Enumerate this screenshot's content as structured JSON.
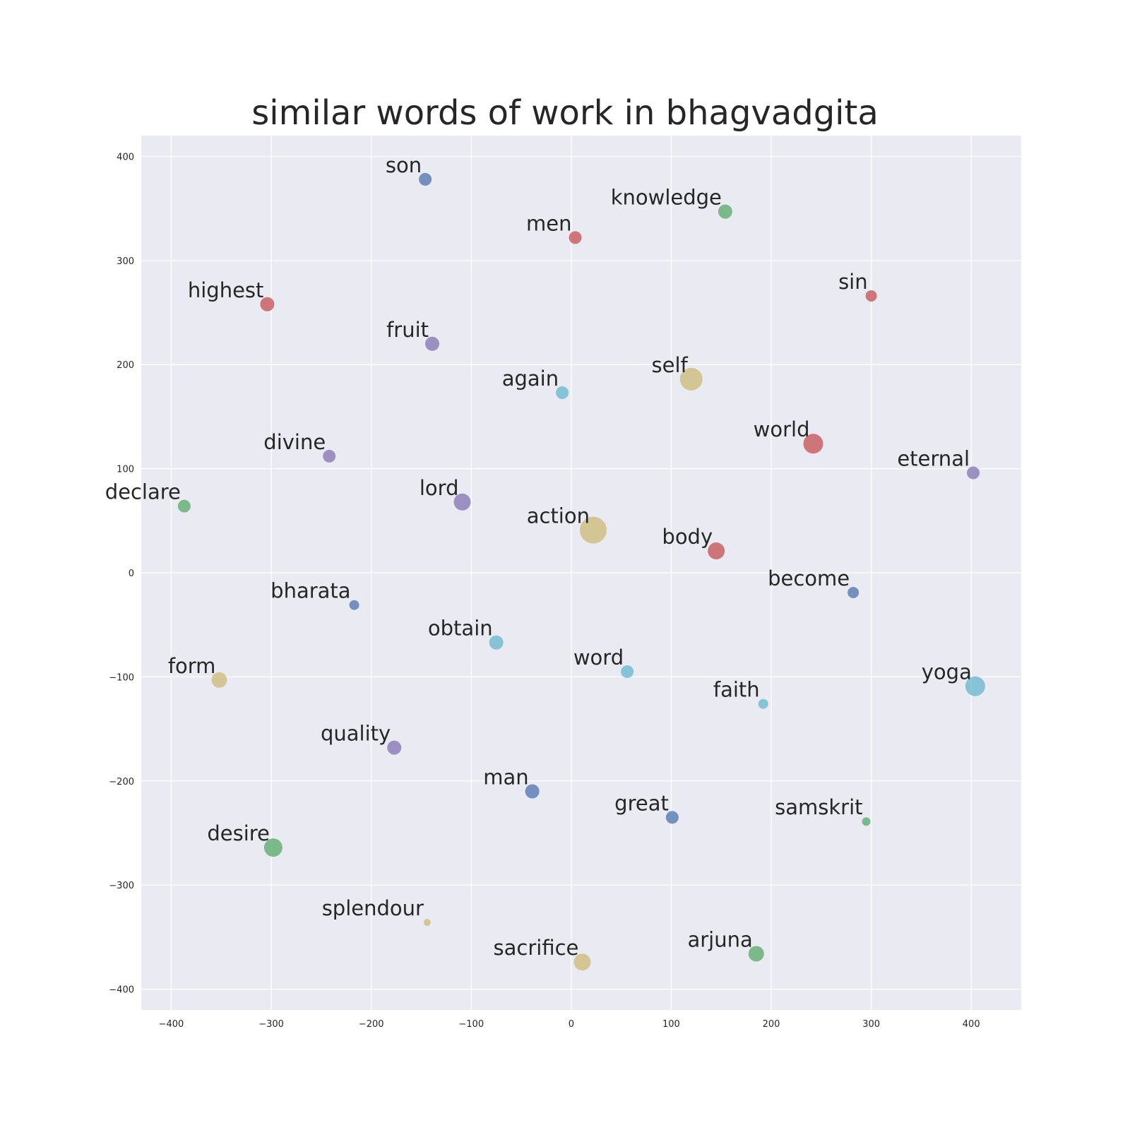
{
  "chart_data": {
    "type": "scatter",
    "title": "similar words of work in bhagvadgita",
    "xlabel": "",
    "ylabel": "",
    "xlim": [
      -430,
      450
    ],
    "ylim": [
      -420,
      420
    ],
    "xticks": [
      -400,
      -300,
      -200,
      -100,
      0,
      100,
      200,
      300,
      400
    ],
    "yticks": [
      -400,
      -300,
      -200,
      -100,
      0,
      100,
      200,
      300,
      400
    ],
    "grid": true,
    "background": "#eaeaf2",
    "colors": {
      "blue": "#4c72b0",
      "green": "#55a868",
      "red": "#c44e52",
      "purple": "#8172b2",
      "yellow": "#ccb974",
      "cyan": "#64b5cd"
    },
    "points": [
      {
        "label": "son",
        "x": -146,
        "y": 378,
        "size": 9,
        "color": "blue"
      },
      {
        "label": "knowledge",
        "x": 154,
        "y": 347,
        "size": 10,
        "color": "green"
      },
      {
        "label": "men",
        "x": 4,
        "y": 322,
        "size": 9,
        "color": "red"
      },
      {
        "label": "highest",
        "x": -304,
        "y": 258,
        "size": 10,
        "color": "red"
      },
      {
        "label": "sin",
        "x": 300,
        "y": 266,
        "size": 8,
        "color": "red"
      },
      {
        "label": "fruit",
        "x": -139,
        "y": 220,
        "size": 10,
        "color": "purple"
      },
      {
        "label": "self",
        "x": 120,
        "y": 186,
        "size": 16,
        "color": "yellow"
      },
      {
        "label": "again",
        "x": -9,
        "y": 173,
        "size": 9,
        "color": "cyan"
      },
      {
        "label": "world",
        "x": 242,
        "y": 124,
        "size": 14,
        "color": "red"
      },
      {
        "label": "divine",
        "x": -242,
        "y": 112,
        "size": 9,
        "color": "purple"
      },
      {
        "label": "eternal",
        "x": 402,
        "y": 96,
        "size": 9,
        "color": "purple"
      },
      {
        "label": "declare",
        "x": -387,
        "y": 64,
        "size": 9,
        "color": "green"
      },
      {
        "label": "lord",
        "x": -109,
        "y": 68,
        "size": 12,
        "color": "purple"
      },
      {
        "label": "action",
        "x": 22,
        "y": 41,
        "size": 19,
        "color": "yellow"
      },
      {
        "label": "body",
        "x": 145,
        "y": 21,
        "size": 12,
        "color": "red"
      },
      {
        "label": "become",
        "x": 282,
        "y": -19,
        "size": 8,
        "color": "blue"
      },
      {
        "label": "bharata",
        "x": -217,
        "y": -31,
        "size": 7,
        "color": "blue"
      },
      {
        "label": "obtain",
        "x": -75,
        "y": -67,
        "size": 10,
        "color": "cyan"
      },
      {
        "label": "word",
        "x": 56,
        "y": -95,
        "size": 9,
        "color": "cyan"
      },
      {
        "label": "form",
        "x": -352,
        "y": -103,
        "size": 11,
        "color": "yellow"
      },
      {
        "label": "yoga",
        "x": 404,
        "y": -109,
        "size": 14,
        "color": "cyan"
      },
      {
        "label": "faith",
        "x": 192,
        "y": -126,
        "size": 7,
        "color": "cyan"
      },
      {
        "label": "quality",
        "x": -177,
        "y": -168,
        "size": 10,
        "color": "purple"
      },
      {
        "label": "man",
        "x": -39,
        "y": -210,
        "size": 10,
        "color": "blue"
      },
      {
        "label": "great",
        "x": 101,
        "y": -235,
        "size": 9,
        "color": "blue"
      },
      {
        "label": "samskrit",
        "x": 295,
        "y": -239,
        "size": 6,
        "color": "green"
      },
      {
        "label": "desire",
        "x": -298,
        "y": -264,
        "size": 13,
        "color": "green"
      },
      {
        "label": "splendour",
        "x": -144,
        "y": -336,
        "size": 5,
        "color": "yellow"
      },
      {
        "label": "sacrifice",
        "x": 11,
        "y": -374,
        "size": 12,
        "color": "yellow"
      },
      {
        "label": "arjuna",
        "x": 185,
        "y": -366,
        "size": 11,
        "color": "green"
      }
    ]
  }
}
